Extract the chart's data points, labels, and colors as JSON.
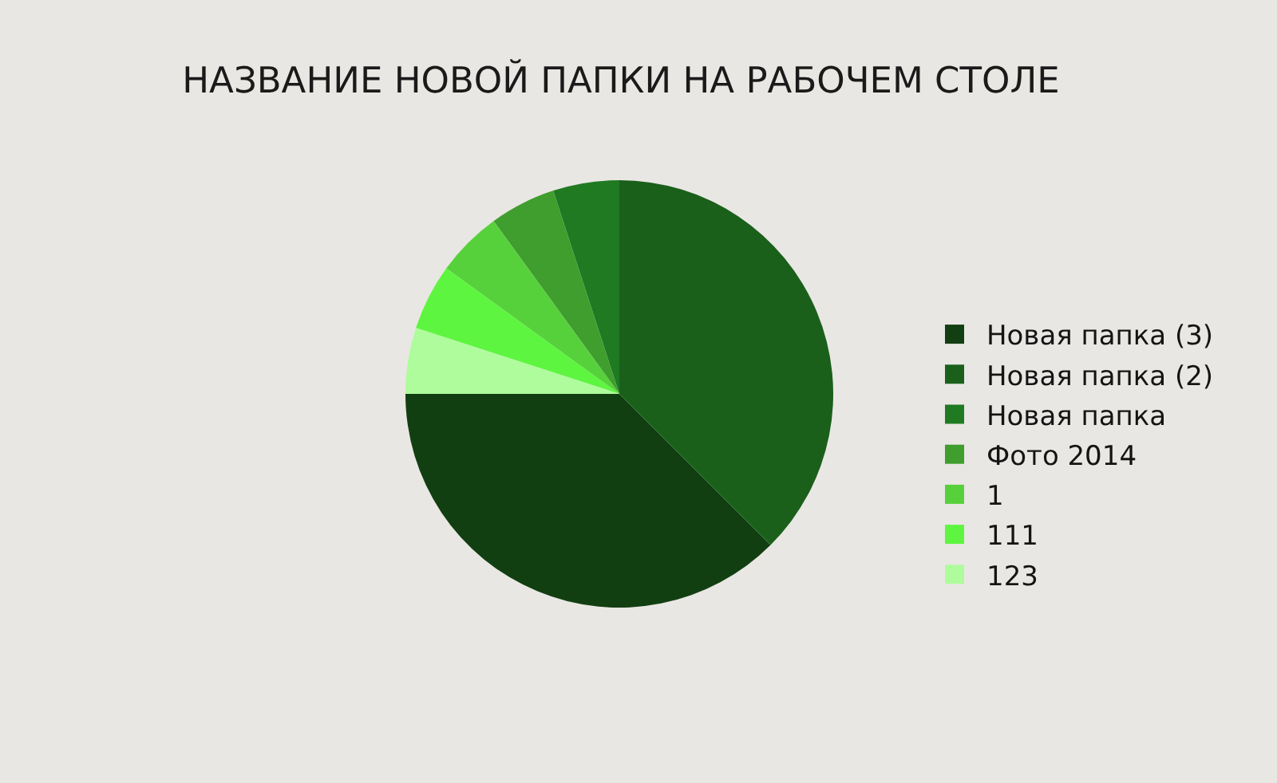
{
  "chart_data": {
    "type": "pie",
    "title": "НАЗВАНИЕ НОВОЙ ПАПКИ НА РАБОЧЕМ СТОЛЕ",
    "categories": [
      "Новая папка (3)",
      "Новая папка (2)",
      "Новая папка",
      "Фото 2014",
      "1",
      "111",
      "123"
    ],
    "values": [
      37.5,
      37.5,
      5,
      5,
      5,
      5,
      5
    ],
    "colors": [
      "#123f12",
      "#1a601b",
      "#1f7a22",
      "#3f9e2e",
      "#56d13b",
      "#5ef540",
      "#aefc9c"
    ],
    "legend": "right"
  }
}
